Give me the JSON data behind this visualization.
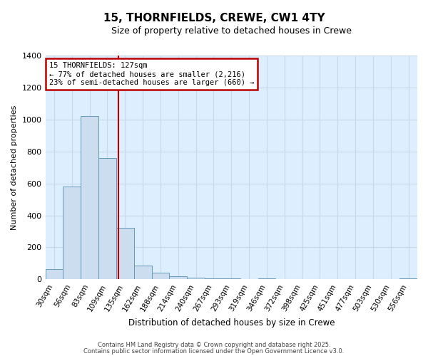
{
  "title": "15, THORNFIELDS, CREWE, CW1 4TY",
  "subtitle": "Size of property relative to detached houses in Crewe",
  "xlabel": "Distribution of detached houses by size in Crewe",
  "ylabel": "Number of detached properties",
  "categories": [
    "30sqm",
    "56sqm",
    "83sqm",
    "109sqm",
    "135sqm",
    "162sqm",
    "188sqm",
    "214sqm",
    "240sqm",
    "267sqm",
    "293sqm",
    "319sqm",
    "346sqm",
    "372sqm",
    "398sqm",
    "425sqm",
    "451sqm",
    "477sqm",
    "503sqm",
    "530sqm",
    "556sqm"
  ],
  "values": [
    65,
    580,
    1020,
    760,
    320,
    85,
    40,
    20,
    10,
    5,
    5,
    0,
    5,
    0,
    0,
    0,
    0,
    0,
    0,
    0,
    5
  ],
  "bar_color": "#ccddef",
  "bar_edge_color": "#6699bb",
  "vline_color": "#bb0000",
  "annotation_text": "15 THORNFIELDS: 127sqm\n← 77% of detached houses are smaller (2,216)\n23% of semi-detached houses are larger (660) →",
  "annotation_box_facecolor": "#ffffff",
  "annotation_box_edgecolor": "#bb0000",
  "ylim": [
    0,
    1400
  ],
  "yticks": [
    0,
    200,
    400,
    600,
    800,
    1000,
    1200,
    1400
  ],
  "grid_color": "#c8d8e8",
  "bg_color": "#ddeeff",
  "footnote1": "Contains HM Land Registry data © Crown copyright and database right 2025.",
  "footnote2": "Contains public sector information licensed under the Open Government Licence v3.0."
}
